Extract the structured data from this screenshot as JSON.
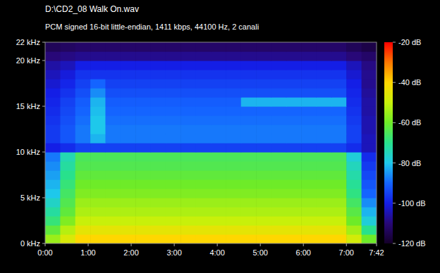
{
  "chart_data": {
    "type": "heatmap",
    "title": "D:\\CD2_08 Walk On.wav",
    "subtitle": "PCM signed 16-bit little-endian, 1411 kbps, 44100 Hz, 2 canali",
    "x": [
      0,
      21,
      42,
      63,
      84,
      105,
      126,
      147,
      168,
      189,
      210,
      231,
      252,
      273,
      294,
      315,
      336,
      357,
      378,
      399,
      420,
      441
    ],
    "y": [
      0,
      1,
      2,
      3,
      4,
      5,
      6,
      7,
      8,
      9,
      10,
      11,
      12,
      13,
      14,
      15,
      16,
      17,
      18,
      19,
      20,
      21
    ],
    "xlim": [
      0,
      462
    ],
    "ylim": [
      0,
      22
    ],
    "xticks": [
      {
        "value": 0,
        "label": "0:00"
      },
      {
        "value": 60,
        "label": "1:00"
      },
      {
        "value": 120,
        "label": "2:00"
      },
      {
        "value": 180,
        "label": "3:00"
      },
      {
        "value": 240,
        "label": "4:00"
      },
      {
        "value": 300,
        "label": "5:00"
      },
      {
        "value": 360,
        "label": "6:00"
      },
      {
        "value": 420,
        "label": "7:00"
      },
      {
        "value": 462,
        "label": "7:42"
      }
    ],
    "yticks": [
      {
        "value": 0,
        "label": "0 kHz"
      },
      {
        "value": 5,
        "label": "5 kHz"
      },
      {
        "value": 10,
        "label": "10 kHz"
      },
      {
        "value": 15,
        "label": "15 kHz"
      },
      {
        "value": 20,
        "label": "20 kHz"
      },
      {
        "value": 22,
        "label": "22 kHz"
      }
    ],
    "colorbar_range": [
      -120,
      -20
    ],
    "colorbar_ticks": [
      {
        "value": -20,
        "label": "-20 dB"
      },
      {
        "value": -40,
        "label": "-40 dB"
      },
      {
        "value": -60,
        "label": "-60 dB"
      },
      {
        "value": -80,
        "label": "-80 dB"
      },
      {
        "value": -100,
        "label": "-100 dB"
      },
      {
        "value": -120,
        "label": "-120 dB"
      }
    ],
    "cells": [
      [
        -55,
        -47,
        -40,
        -40,
        -40,
        -40,
        -40,
        -40,
        -40,
        -40,
        -40,
        -40,
        -40,
        -40,
        -40,
        -40,
        -40,
        -40,
        -40,
        -40,
        -48,
        -60
      ],
      [
        -62,
        -52,
        -45,
        -45,
        -45,
        -45,
        -45,
        -45,
        -45,
        -45,
        -45,
        -45,
        -45,
        -45,
        -45,
        -45,
        -45,
        -45,
        -45,
        -45,
        -54,
        -70
      ],
      [
        -68,
        -58,
        -50,
        -50,
        -50,
        -50,
        -50,
        -50,
        -50,
        -50,
        -50,
        -50,
        -50,
        -50,
        -50,
        -50,
        -50,
        -50,
        -50,
        -50,
        -60,
        -78
      ],
      [
        -72,
        -62,
        -53,
        -53,
        -53,
        -53,
        -53,
        -53,
        -53,
        -53,
        -53,
        -53,
        -53,
        -53,
        -53,
        -53,
        -53,
        -53,
        -53,
        -53,
        -63,
        -82
      ],
      [
        -76,
        -64,
        -55,
        -55,
        -55,
        -55,
        -55,
        -55,
        -55,
        -55,
        -55,
        -55,
        -55,
        -55,
        -55,
        -55,
        -55,
        -55,
        -55,
        -55,
        -66,
        -86
      ],
      [
        -80,
        -66,
        -58,
        -58,
        -58,
        -58,
        -58,
        -58,
        -58,
        -58,
        -58,
        -58,
        -58,
        -58,
        -58,
        -58,
        -58,
        -58,
        -58,
        -58,
        -69,
        -90
      ],
      [
        -82,
        -68,
        -60,
        -60,
        -60,
        -60,
        -60,
        -60,
        -60,
        -60,
        -60,
        -60,
        -60,
        -60,
        -60,
        -60,
        -60,
        -60,
        -60,
        -60,
        -71,
        -92
      ],
      [
        -84,
        -70,
        -62,
        -62,
        -62,
        -62,
        -62,
        -62,
        -62,
        -62,
        -62,
        -62,
        -62,
        -62,
        -62,
        -62,
        -62,
        -62,
        -62,
        -62,
        -73,
        -94
      ],
      [
        -86,
        -72,
        -64,
        -64,
        -64,
        -64,
        -64,
        -64,
        -64,
        -64,
        -64,
        -64,
        -64,
        -64,
        -64,
        -64,
        -64,
        -64,
        -64,
        -64,
        -75,
        -96
      ],
      [
        -88,
        -74,
        -65,
        -65,
        -65,
        -65,
        -65,
        -65,
        -65,
        -65,
        -65,
        -65,
        -65,
        -65,
        -65,
        -65,
        -65,
        -65,
        -65,
        -65,
        -78,
        -98
      ],
      [
        -100,
        -98,
        -95,
        -95,
        -95,
        -95,
        -95,
        -95,
        -95,
        -95,
        -95,
        -95,
        -95,
        -95,
        -95,
        -95,
        -95,
        -95,
        -95,
        -95,
        -98,
        -104
      ],
      [
        -96,
        -92,
        -88,
        -82,
        -88,
        -88,
        -88,
        -88,
        -88,
        -88,
        -88,
        -88,
        -88,
        -88,
        -88,
        -88,
        -88,
        -88,
        -88,
        -88,
        -95,
        -104
      ],
      [
        -96,
        -92,
        -88,
        -80,
        -88,
        -88,
        -88,
        -88,
        -88,
        -88,
        -88,
        -88,
        -88,
        -88,
        -88,
        -88,
        -88,
        -88,
        -88,
        -88,
        -95,
        -105
      ],
      [
        -97,
        -93,
        -89,
        -80,
        -89,
        -89,
        -89,
        -89,
        -89,
        -89,
        -89,
        -89,
        -89,
        -89,
        -89,
        -89,
        -89,
        -89,
        -89,
        -89,
        -96,
        -105
      ],
      [
        -98,
        -94,
        -90,
        -81,
        -90,
        -90,
        -90,
        -90,
        -90,
        -90,
        -90,
        -90,
        -90,
        -90,
        -90,
        -90,
        -90,
        -90,
        -90,
        -90,
        -97,
        -106
      ],
      [
        -99,
        -95,
        -91,
        -82,
        -91,
        -91,
        -91,
        -91,
        -91,
        -91,
        -91,
        -91,
        -91,
        -82,
        -82,
        -82,
        -82,
        -82,
        -82,
        -82,
        -98,
        -106
      ],
      [
        -100,
        -97,
        -93,
        -86,
        -93,
        -93,
        -93,
        -93,
        -93,
        -93,
        -93,
        -93,
        -93,
        -93,
        -93,
        -93,
        -93,
        -93,
        -93,
        -93,
        -99,
        -107
      ],
      [
        -102,
        -99,
        -95,
        -90,
        -95,
        -95,
        -95,
        -95,
        -95,
        -95,
        -95,
        -95,
        -95,
        -95,
        -95,
        -95,
        -95,
        -95,
        -95,
        -95,
        -100,
        -108
      ],
      [
        -104,
        -101,
        -97,
        -97,
        -97,
        -97,
        -97,
        -97,
        -97,
        -97,
        -97,
        -97,
        -97,
        -97,
        -97,
        -97,
        -97,
        -97,
        -97,
        -97,
        -102,
        -108
      ],
      [
        -106,
        -104,
        -100,
        -100,
        -100,
        -100,
        -100,
        -100,
        -100,
        -100,
        -100,
        -100,
        -100,
        -100,
        -100,
        -100,
        -100,
        -100,
        -100,
        -100,
        -104,
        -109
      ],
      [
        -110,
        -109,
        -108,
        -108,
        -108,
        -108,
        -108,
        -108,
        -108,
        -108,
        -108,
        -108,
        -108,
        -108,
        -108,
        -108,
        -108,
        -108,
        -108,
        -108,
        -110,
        -112
      ],
      [
        -114,
        -113,
        -112,
        -112,
        -112,
        -112,
        -112,
        -112,
        -112,
        -112,
        -112,
        -112,
        -112,
        -112,
        -112,
        -112,
        -112,
        -112,
        -112,
        -112,
        -114,
        -116
      ]
    ]
  }
}
